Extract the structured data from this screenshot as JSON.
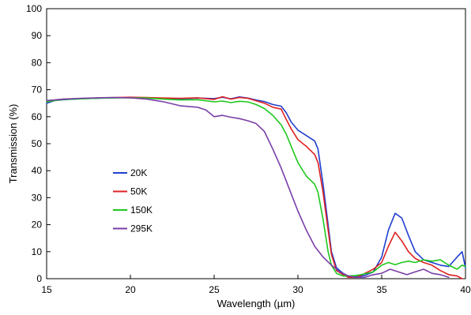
{
  "chart_data": {
    "type": "line",
    "title": "",
    "xlabel": "Wavelength (µm)",
    "ylabel": "Transmission (%)",
    "xlim": [
      15,
      40
    ],
    "ylim": [
      0,
      100
    ],
    "x_ticks": [
      "15",
      "20",
      "25",
      "30",
      "35",
      "40"
    ],
    "y_ticks": [
      "0",
      "10",
      "20",
      "30",
      "40",
      "50",
      "60",
      "70",
      "80",
      "90",
      "100"
    ],
    "grid": false,
    "legend_placement": "center-left",
    "series": [
      {
        "name": "20K",
        "color": "#1f3fd0",
        "points": [
          [
            15.0,
            65.0
          ],
          [
            15.5,
            66.0
          ],
          [
            16.0,
            66.3
          ],
          [
            17.0,
            66.6
          ],
          [
            18.0,
            66.8
          ],
          [
            19.0,
            67.0
          ],
          [
            20.0,
            67.1
          ],
          [
            21.0,
            67.0
          ],
          [
            22.0,
            66.8
          ],
          [
            23.0,
            66.6
          ],
          [
            24.0,
            66.9
          ],
          [
            25.0,
            66.7
          ],
          [
            25.5,
            67.2
          ],
          [
            26.0,
            66.6
          ],
          [
            26.5,
            67.3
          ],
          [
            27.0,
            66.9
          ],
          [
            27.5,
            66.2
          ],
          [
            28.0,
            65.6
          ],
          [
            28.5,
            64.5
          ],
          [
            29.0,
            63.9
          ],
          [
            29.3,
            61.5
          ],
          [
            29.6,
            58.0
          ],
          [
            30.0,
            55.0
          ],
          [
            30.5,
            53.0
          ],
          [
            31.0,
            51.0
          ],
          [
            31.2,
            48.0
          ],
          [
            31.5,
            35.0
          ],
          [
            31.8,
            20.0
          ],
          [
            32.0,
            10.0
          ],
          [
            32.3,
            4.0
          ],
          [
            32.7,
            2.0
          ],
          [
            33.0,
            1.0
          ],
          [
            33.5,
            0.8
          ],
          [
            34.0,
            1.2
          ],
          [
            34.5,
            2.5
          ],
          [
            35.0,
            8.0
          ],
          [
            35.4,
            18.0
          ],
          [
            35.8,
            24.2
          ],
          [
            36.2,
            22.5
          ],
          [
            36.6,
            16.0
          ],
          [
            37.0,
            10.0
          ],
          [
            37.5,
            7.0
          ],
          [
            38.0,
            6.0
          ],
          [
            38.5,
            5.0
          ],
          [
            39.0,
            4.5
          ],
          [
            39.5,
            8.0
          ],
          [
            39.8,
            10.0
          ],
          [
            40.0,
            4.0
          ]
        ]
      },
      {
        "name": "50K",
        "color": "#e02020",
        "points": [
          [
            15.0,
            65.5
          ],
          [
            15.5,
            66.2
          ],
          [
            16.0,
            66.5
          ],
          [
            17.0,
            66.7
          ],
          [
            18.0,
            66.9
          ],
          [
            19.0,
            67.1
          ],
          [
            20.0,
            67.2
          ],
          [
            21.0,
            67.1
          ],
          [
            22.0,
            66.9
          ],
          [
            23.0,
            66.8
          ],
          [
            24.0,
            67.0
          ],
          [
            25.0,
            66.4
          ],
          [
            25.5,
            67.4
          ],
          [
            26.0,
            66.5
          ],
          [
            26.5,
            67.1
          ],
          [
            27.0,
            66.8
          ],
          [
            27.5,
            65.9
          ],
          [
            28.0,
            65.0
          ],
          [
            28.5,
            63.5
          ],
          [
            29.0,
            62.8
          ],
          [
            29.3,
            59.0
          ],
          [
            29.6,
            55.5
          ],
          [
            30.0,
            51.5
          ],
          [
            30.5,
            49.0
          ],
          [
            31.0,
            46.0
          ],
          [
            31.2,
            43.0
          ],
          [
            31.5,
            32.0
          ],
          [
            31.8,
            18.0
          ],
          [
            32.0,
            9.0
          ],
          [
            32.3,
            3.0
          ],
          [
            32.7,
            1.5
          ],
          [
            33.0,
            0.5
          ],
          [
            33.5,
            0.5
          ],
          [
            34.0,
            2.0
          ],
          [
            34.5,
            3.5
          ],
          [
            35.0,
            6.0
          ],
          [
            35.4,
            12.0
          ],
          [
            35.8,
            17.2
          ],
          [
            36.2,
            14.0
          ],
          [
            36.6,
            10.0
          ],
          [
            37.0,
            7.5
          ],
          [
            37.5,
            6.0
          ],
          [
            38.0,
            5.0
          ],
          [
            38.5,
            3.0
          ],
          [
            39.0,
            1.5
          ],
          [
            39.5,
            1.0
          ],
          [
            39.8,
            0.0
          ]
        ]
      },
      {
        "name": "150K",
        "color": "#1ec81e",
        "points": [
          [
            15.0,
            65.5
          ],
          [
            15.5,
            66.0
          ],
          [
            16.0,
            66.4
          ],
          [
            17.0,
            66.6
          ],
          [
            18.0,
            66.8
          ],
          [
            19.0,
            67.0
          ],
          [
            20.0,
            67.0
          ],
          [
            21.0,
            66.9
          ],
          [
            22.0,
            66.5
          ],
          [
            23.0,
            66.2
          ],
          [
            24.0,
            66.3
          ],
          [
            25.0,
            65.5
          ],
          [
            25.5,
            65.8
          ],
          [
            26.0,
            65.2
          ],
          [
            26.5,
            65.7
          ],
          [
            27.0,
            65.5
          ],
          [
            27.5,
            64.5
          ],
          [
            28.0,
            63.0
          ],
          [
            28.5,
            60.5
          ],
          [
            29.0,
            57.0
          ],
          [
            29.3,
            53.5
          ],
          [
            29.6,
            49.0
          ],
          [
            30.0,
            43.0
          ],
          [
            30.5,
            38.0
          ],
          [
            31.0,
            35.0
          ],
          [
            31.2,
            32.0
          ],
          [
            31.5,
            22.0
          ],
          [
            31.8,
            10.0
          ],
          [
            32.0,
            5.0
          ],
          [
            32.3,
            2.0
          ],
          [
            32.7,
            1.0
          ],
          [
            33.0,
            1.0
          ],
          [
            33.5,
            1.2
          ],
          [
            34.0,
            1.8
          ],
          [
            34.5,
            2.5
          ],
          [
            35.0,
            5.0
          ],
          [
            35.4,
            6.0
          ],
          [
            35.8,
            5.2
          ],
          [
            36.2,
            6.0
          ],
          [
            36.6,
            6.5
          ],
          [
            37.0,
            6.0
          ],
          [
            37.5,
            7.0
          ],
          [
            38.0,
            6.5
          ],
          [
            38.5,
            7.0
          ],
          [
            39.0,
            5.0
          ],
          [
            39.5,
            3.5
          ],
          [
            39.8,
            5.0
          ],
          [
            40.0,
            4.5
          ]
        ]
      },
      {
        "name": "295K",
        "color": "#7a3ea8",
        "points": [
          [
            15.0,
            66.0
          ],
          [
            15.5,
            66.2
          ],
          [
            16.0,
            66.5
          ],
          [
            17.0,
            66.8
          ],
          [
            18.0,
            67.0
          ],
          [
            19.0,
            67.1
          ],
          [
            20.0,
            67.0
          ],
          [
            21.0,
            66.5
          ],
          [
            21.5,
            66.0
          ],
          [
            22.0,
            65.5
          ],
          [
            23.0,
            64.0
          ],
          [
            24.0,
            63.5
          ],
          [
            24.5,
            62.5
          ],
          [
            25.0,
            60.0
          ],
          [
            25.5,
            60.5
          ],
          [
            26.0,
            59.8
          ],
          [
            26.5,
            59.3
          ],
          [
            27.0,
            58.5
          ],
          [
            27.5,
            57.5
          ],
          [
            28.0,
            54.5
          ],
          [
            28.5,
            48.0
          ],
          [
            29.0,
            41.0
          ],
          [
            29.5,
            33.0
          ],
          [
            30.0,
            25.0
          ],
          [
            30.5,
            18.0
          ],
          [
            31.0,
            12.0
          ],
          [
            31.5,
            8.0
          ],
          [
            32.0,
            5.0
          ],
          [
            32.5,
            2.5
          ],
          [
            33.0,
            1.0
          ],
          [
            33.5,
            0.5
          ],
          [
            34.0,
            0.5
          ],
          [
            34.5,
            1.5
          ],
          [
            35.0,
            2.0
          ],
          [
            35.5,
            3.5
          ],
          [
            36.0,
            2.5
          ],
          [
            36.5,
            1.5
          ],
          [
            37.0,
            2.5
          ],
          [
            37.5,
            3.5
          ],
          [
            38.0,
            2.0
          ],
          [
            38.5,
            1.5
          ],
          [
            39.0,
            0.5
          ]
        ]
      }
    ]
  }
}
